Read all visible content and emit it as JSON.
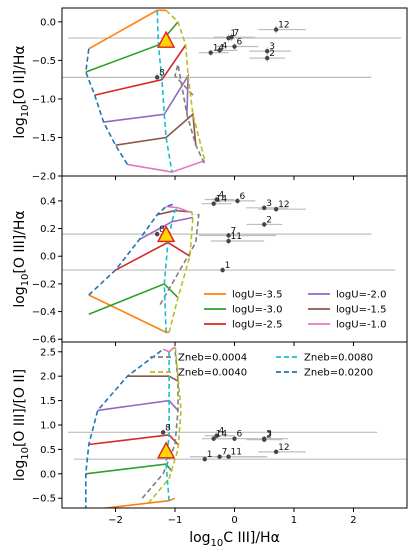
{
  "chart_data": [
    {
      "type": "line",
      "ylabel": "log$_{10}$[O II]/Hα",
      "ylabel_main": "log",
      "ylabel_sub": "10",
      "ylabel_rest": "[O II]/Hα",
      "xlim": [
        -2.9,
        2.9
      ],
      "ylim": [
        -2.0,
        0.18
      ],
      "yticks": [
        0.0,
        -0.5,
        -1.0,
        -1.5,
        -2.0
      ],
      "ytick_labels": [
        "0.0",
        "−0.5",
        "−1.0",
        "−1.5",
        "−2.0"
      ],
      "xtick_values": [
        -2,
        -1,
        0,
        1,
        2
      ],
      "metallicity_lines": [
        {
          "style": "dashed",
          "color": "#7f7f7f",
          "x": [
            -0.7,
            -1.0,
            -0.95,
            -0.8,
            -0.65,
            -0.5
          ],
          "y": [
            -0.95,
            -0.7,
            -0.55,
            -1.2,
            -1.6,
            -1.85
          ]
        },
        {
          "style": "dashed",
          "color": "#bcbd22",
          "x": [
            -1.15,
            -0.95,
            -0.82,
            -0.78,
            -0.7,
            -0.5
          ],
          "y": [
            0.15,
            0.0,
            -0.3,
            -0.7,
            -1.2,
            -1.8
          ]
        },
        {
          "style": "dashed",
          "color": "#17becf",
          "x": [
            -1.3,
            -1.28,
            -1.22,
            -1.18,
            -1.15,
            -1.05
          ],
          "y": [
            0.15,
            -0.3,
            -0.75,
            -1.2,
            -1.5,
            -1.95
          ]
        },
        {
          "style": "dashed",
          "color": "#1f77b4",
          "x": [
            -2.45,
            -2.5,
            -2.35,
            -2.2,
            -2.0,
            -1.8
          ],
          "y": [
            -0.35,
            -0.65,
            -0.95,
            -1.3,
            -1.6,
            -1.85
          ]
        }
      ],
      "ionization_lines": [
        {
          "label": "logU=-3.5",
          "color": "#ff7f0e",
          "x": [
            -2.45,
            -1.3,
            -1.15
          ],
          "y": [
            -0.35,
            0.15,
            0.15
          ]
        },
        {
          "label": "logU=-3.0",
          "color": "#2ca02c",
          "x": [
            -2.5,
            -1.28,
            -0.95
          ],
          "y": [
            -0.65,
            -0.3,
            0.0
          ]
        },
        {
          "label": "logU=-2.5",
          "color": "#d62728",
          "x": [
            -2.35,
            -1.22,
            -0.82
          ],
          "y": [
            -0.95,
            -0.75,
            -0.3
          ]
        },
        {
          "label": "logU=-2.0",
          "color": "#9467bd",
          "x": [
            -2.2,
            -1.18,
            -0.78,
            -0.8
          ],
          "y": [
            -1.3,
            -1.2,
            -0.7,
            -1.2
          ]
        },
        {
          "label": "logU=-1.5",
          "color": "#8c564b",
          "x": [
            -2.0,
            -1.15,
            -0.7,
            -0.65
          ],
          "y": [
            -1.6,
            -1.5,
            -1.2,
            -1.6
          ]
        },
        {
          "label": "logU=-1.0",
          "color": "#e377c2",
          "x": [
            -1.8,
            -1.05,
            -0.5
          ],
          "y": [
            -1.85,
            -1.95,
            -1.8
          ]
        }
      ],
      "triangle": {
        "x": -1.15,
        "y": -0.25
      },
      "points": [
        {
          "label": "12",
          "x": 0.7,
          "y": -0.1,
          "xerr": [
            0.3,
            0.5
          ],
          "yerr": 0.05
        },
        {
          "label": "7",
          "x": -0.05,
          "y": -0.2,
          "xerr": [
            0.3,
            0.4
          ],
          "yerr": 0.05
        },
        {
          "label": "1",
          "x": -0.1,
          "y": -0.21,
          "xerr": [
            2.7,
            2.9
          ],
          "yerr": 0.05
        },
        {
          "label": "6",
          "x": 0.0,
          "y": -0.32,
          "xerr": [
            0.3,
            0.4
          ],
          "yerr": 0.04
        },
        {
          "label": "4",
          "x": -0.25,
          "y": -0.37,
          "xerr": [
            0.1,
            0.3
          ],
          "yerr": 0.04
        },
        {
          "label": "14",
          "x": -0.4,
          "y": -0.4,
          "xerr": [
            0.2,
            0.3
          ],
          "yerr": 0.04
        },
        {
          "label": "3",
          "x": 0.55,
          "y": -0.38,
          "xerr": [
            0.3,
            0.4
          ],
          "yerr": 0.05
        },
        {
          "label": "2",
          "x": 0.55,
          "y": -0.47,
          "xerr": [
            0.3,
            0.3
          ],
          "yerr": 0.05
        },
        {
          "label": "8",
          "x": -1.3,
          "y": -0.72,
          "xerr": [
            1.6,
            3.6
          ],
          "yerr": 0.05
        }
      ]
    },
    {
      "type": "line",
      "ylabel": "log$_{10}$[O III]/Hα",
      "ylabel_main": "log",
      "ylabel_sub": "10",
      "ylabel_rest": "[O III]/Hα",
      "xlim": [
        -2.9,
        2.9
      ],
      "ylim": [
        -0.62,
        0.58
      ],
      "yticks": [
        0.4,
        0.2,
        0.0,
        -0.2,
        -0.4,
        -0.6
      ],
      "ytick_labels": [
        "0.4",
        "0.2",
        "0.0",
        "−0.2",
        "−0.4",
        "−0.6"
      ],
      "xtick_values": [
        -2,
        -1,
        0,
        1,
        2
      ],
      "metallicity_lines": [
        {
          "style": "dashed",
          "color": "#7f7f7f",
          "x": [
            -1.25,
            -0.85,
            -0.65,
            -0.6,
            -0.62,
            -0.68
          ],
          "y": [
            -0.35,
            -0.05,
            0.1,
            0.3,
            0.3,
            0.3
          ]
        },
        {
          "style": "dashed",
          "color": "#bcbd22",
          "x": [
            -1.1,
            -0.95,
            -0.75,
            -0.7,
            -0.72,
            -0.75
          ],
          "y": [
            -0.55,
            -0.3,
            0.0,
            0.28,
            0.32,
            0.32
          ]
        },
        {
          "style": "dashed",
          "color": "#17becf",
          "x": [
            -1.15,
            -1.18,
            -1.12,
            -1.05,
            -1.0,
            -0.95
          ],
          "y": [
            -0.55,
            -0.2,
            0.1,
            0.25,
            0.33,
            0.35
          ]
        },
        {
          "style": "dashed",
          "color": "#1f77b4",
          "x": [
            -2.45,
            -2.0,
            -1.6,
            -1.3,
            -1.15,
            -1.0
          ],
          "y": [
            -0.28,
            -0.1,
            0.12,
            0.3,
            0.36,
            0.38
          ]
        }
      ],
      "ionization_lines": [
        {
          "label": "logU=-3.5",
          "color": "#ff7f0e",
          "x": [
            -2.45,
            -1.15,
            -1.1
          ],
          "y": [
            -0.28,
            -0.55,
            -0.55
          ]
        },
        {
          "label": "logU=-3.0",
          "color": "#2ca02c",
          "x": [
            -2.45,
            -1.18,
            -0.95
          ],
          "y": [
            -0.42,
            -0.2,
            -0.3
          ]
        },
        {
          "label": "logU=-2.5",
          "color": "#d62728",
          "x": [
            -2.0,
            -1.12,
            -0.75
          ],
          "y": [
            -0.1,
            0.1,
            0.0
          ]
        },
        {
          "label": "logU=-2.0",
          "color": "#9467bd",
          "x": [
            -1.6,
            -1.05,
            -0.7
          ],
          "y": [
            0.12,
            0.25,
            0.28
          ]
        },
        {
          "label": "logU=-1.5",
          "color": "#8c564b",
          "x": [
            -1.3,
            -1.0,
            -0.72
          ],
          "y": [
            0.3,
            0.33,
            0.32
          ]
        },
        {
          "label": "logU=-1.0",
          "color": "#e377c2",
          "x": [
            -1.15,
            -0.95,
            -0.75
          ],
          "y": [
            0.36,
            0.35,
            0.32
          ]
        }
      ],
      "triangle": {
        "x": -1.15,
        "y": 0.15
      },
      "points": [
        {
          "label": "4",
          "x": -0.3,
          "y": 0.41,
          "xerr": [
            0.2,
            0.3
          ],
          "yerr": 0.02
        },
        {
          "label": "14",
          "x": -0.35,
          "y": 0.38,
          "xerr": [
            0.2,
            0.3
          ],
          "yerr": 0.02
        },
        {
          "label": "6",
          "x": 0.05,
          "y": 0.4,
          "xerr": [
            0.3,
            0.3
          ],
          "yerr": 0.02
        },
        {
          "label": "3",
          "x": 0.5,
          "y": 0.35,
          "xerr": [
            0.3,
            0.4
          ],
          "yerr": 0.02
        },
        {
          "label": "12",
          "x": 0.7,
          "y": 0.34,
          "xerr": [
            0.3,
            0.5
          ],
          "yerr": 0.02
        },
        {
          "label": "2",
          "x": 0.5,
          "y": 0.23,
          "xerr": [
            0.3,
            0.3
          ],
          "yerr": 0.02
        },
        {
          "label": "7",
          "x": -0.1,
          "y": 0.15,
          "xerr": [
            0.5,
            0.8
          ],
          "yerr": 0.02
        },
        {
          "label": "11",
          "x": -0.1,
          "y": 0.11,
          "xerr": [
            0.3,
            0.6
          ],
          "yerr": 0.02
        },
        {
          "label": "8",
          "x": -1.3,
          "y": 0.16,
          "xerr": [
            1.6,
            3.6
          ],
          "yerr": 0.02
        },
        {
          "label": "1",
          "x": -0.2,
          "y": -0.1,
          "xerr": [
            2.7,
            2.9
          ],
          "yerr": 0.02
        }
      ],
      "legend": {
        "position": "lower-right",
        "entries": [
          {
            "label": "logU=-3.5",
            "color": "#ff7f0e"
          },
          {
            "label": "logU=-2.0",
            "color": "#9467bd"
          },
          {
            "label": "logU=-3.0",
            "color": "#2ca02c"
          },
          {
            "label": "logU=-1.5",
            "color": "#8c564b"
          },
          {
            "label": "logU=-2.5",
            "color": "#d62728"
          },
          {
            "label": "logU=-1.0",
            "color": "#e377c2"
          }
        ]
      }
    },
    {
      "type": "line",
      "ylabel": "log$_{10}$[O III]/[O II]",
      "ylabel_main": "log",
      "ylabel_sub": "10",
      "ylabel_rest": "[O III]/[O II]",
      "xlabel": "log$_{10}$C III]/Hα",
      "xlabel_main": "log",
      "xlabel_sub": "10",
      "xlabel_rest": "C III]/Hα",
      "xlim": [
        -2.9,
        2.9
      ],
      "ylim": [
        -0.7,
        2.7
      ],
      "yticks": [
        2.5,
        2.0,
        1.5,
        1.0,
        0.5,
        0.0,
        -0.5
      ],
      "ytick_labels": [
        "2.5",
        "2.0",
        "1.5",
        "1.0",
        "0.5",
        "0.0",
        "−0.5"
      ],
      "xticks": [
        -2,
        -1,
        0,
        1,
        2
      ],
      "xtick_labels": [
        "−2",
        "−1",
        "0",
        "1",
        "2"
      ],
      "metallicity_lines": [
        {
          "style": "dashed",
          "color": "#7f7f7f",
          "x": [
            -1.55,
            -1.2,
            -1.0,
            -0.95,
            -0.95,
            -1.0
          ],
          "y": [
            -0.5,
            0.0,
            0.6,
            1.3,
            1.9,
            2.55
          ]
        },
        {
          "style": "dashed",
          "color": "#bcbd22",
          "x": [
            -1.45,
            -1.1,
            -0.95,
            -0.9,
            -0.95,
            -1.0
          ],
          "y": [
            -0.6,
            -0.1,
            0.5,
            1.3,
            2.0,
            2.65
          ]
        },
        {
          "style": "dashed",
          "color": "#17becf",
          "x": [
            -1.1,
            -1.15,
            -1.1,
            -1.1,
            -1.1,
            -1.1
          ],
          "y": [
            -0.55,
            0.2,
            0.8,
            1.5,
            2.0,
            2.5
          ]
        },
        {
          "style": "dashed",
          "color": "#1f77b4",
          "x": [
            -2.5,
            -2.5,
            -2.45,
            -2.3,
            -1.8,
            -1.2
          ],
          "y": [
            -0.75,
            0.0,
            0.6,
            1.3,
            2.0,
            2.55
          ]
        }
      ],
      "ionization_lines": [
        {
          "label": "logU=-3.5",
          "color": "#ff7f0e",
          "x": [
            -2.5,
            -1.1,
            -1.0
          ],
          "y": [
            -0.75,
            -0.55,
            -0.5
          ]
        },
        {
          "label": "logU=-3.0",
          "color": "#2ca02c",
          "x": [
            -2.5,
            -1.15,
            -1.05
          ],
          "y": [
            0.0,
            0.2,
            0.05
          ]
        },
        {
          "label": "logU=-2.5",
          "color": "#d62728",
          "x": [
            -2.45,
            -1.1,
            -0.95
          ],
          "y": [
            0.6,
            0.8,
            0.6
          ]
        },
        {
          "label": "logU=-2.0",
          "color": "#9467bd",
          "x": [
            -2.3,
            -1.1,
            -0.95
          ],
          "y": [
            1.3,
            1.5,
            1.3
          ]
        },
        {
          "label": "logU=-1.5",
          "color": "#8c564b",
          "x": [
            -1.8,
            -1.1,
            -0.95
          ],
          "y": [
            2.0,
            2.0,
            1.9
          ]
        },
        {
          "label": "logU=-1.0",
          "color": "#e377c2",
          "x": [
            -1.2,
            -1.1,
            -1.0
          ],
          "y": [
            2.55,
            2.5,
            2.6
          ]
        }
      ],
      "triangle": {
        "x": -1.15,
        "y": 0.45
      },
      "points": [
        {
          "label": "8",
          "x": -1.2,
          "y": 0.85,
          "xerr": [
            1.6,
            3.6
          ],
          "yerr": 0.05
        },
        {
          "label": "4",
          "x": -0.3,
          "y": 0.78,
          "xerr": [
            0.2,
            0.3
          ],
          "yerr": 0.05
        },
        {
          "label": "14",
          "x": -0.35,
          "y": 0.72,
          "xerr": [
            0.2,
            0.3
          ],
          "yerr": 0.05
        },
        {
          "label": "6",
          "x": 0.0,
          "y": 0.72,
          "xerr": [
            0.3,
            0.3
          ],
          "yerr": 0.05
        },
        {
          "label": "3",
          "x": 0.5,
          "y": 0.72,
          "xerr": [
            0.3,
            0.4
          ],
          "yerr": 0.05
        },
        {
          "label": "2",
          "x": 0.5,
          "y": 0.7,
          "xerr": [
            0.3,
            0.3
          ],
          "yerr": 0.05
        },
        {
          "label": "12",
          "x": 0.7,
          "y": 0.45,
          "xerr": [
            0.3,
            0.5
          ],
          "yerr": 0.05
        },
        {
          "label": "7",
          "x": -0.25,
          "y": 0.35,
          "xerr": [
            0.5,
            0.8
          ],
          "yerr": 0.05
        },
        {
          "label": "11",
          "x": -0.1,
          "y": 0.35,
          "xerr": [
            0.3,
            0.6
          ],
          "yerr": 0.05
        },
        {
          "label": "1",
          "x": -0.5,
          "y": 0.3,
          "xerr": [
            2.2,
            3.4
          ],
          "yerr": 0.05
        }
      ],
      "legend": {
        "position": "top-right",
        "entries": [
          {
            "label": "Zneb=0.0004",
            "color": "#7f7f7f"
          },
          {
            "label": "Zneb=0.0080",
            "color": "#17becf"
          },
          {
            "label": "Zneb=0.0040",
            "color": "#bcbd22"
          },
          {
            "label": "Zneb=0.0200",
            "color": "#1f77b4"
          }
        ]
      }
    }
  ]
}
